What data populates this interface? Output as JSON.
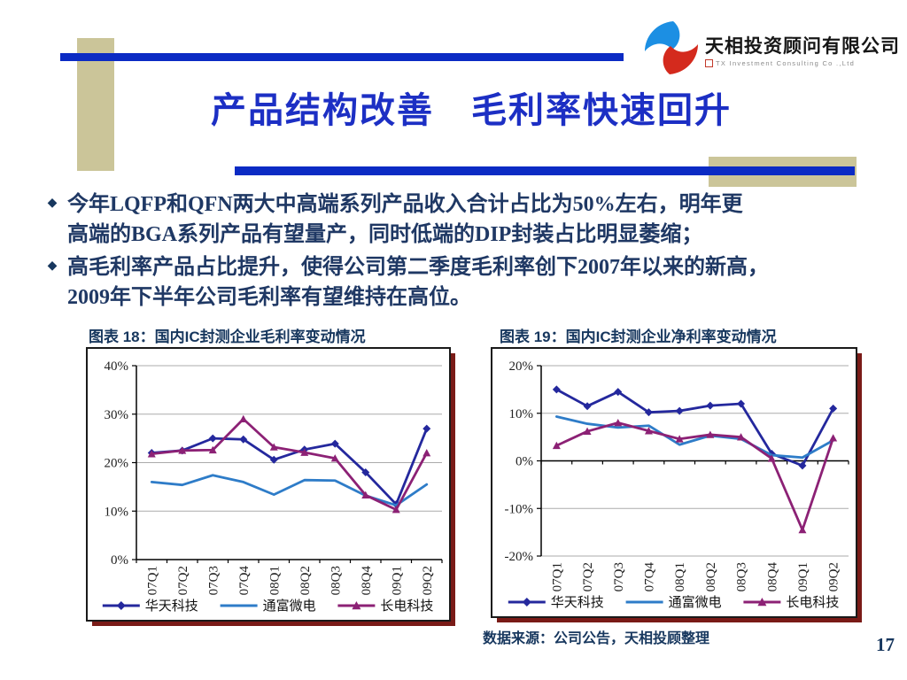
{
  "logo": {
    "company_cn": "天相投资顾问有限公司",
    "company_en": "TX Investment Consulting Co .,Ltd"
  },
  "header": {
    "title": "产品结构改善　毛利率快速回升"
  },
  "bullets": [
    {
      "marker": "◆",
      "line1": "今年LQFP和QFN两大中高端系列产品收入合计占比为50%左右，明年更",
      "line2": "高端的BGA系列产品有望量产，同时低端的DIP封装占比明显萎缩；"
    },
    {
      "marker": "◆",
      "line1": "高毛利率产品占比提升，使得公司第二季度毛利率创下2007年以来的新高，",
      "line2": "2009年下半年公司毛利率有望维持在高位。"
    }
  ],
  "source_note": "数据来源：公司公告，天相投顾整理",
  "page_number": "17",
  "colors": {
    "accent_blue_bar": "#0B2BC4",
    "title_blue": "#1C2FC4",
    "tan": "#CBC599",
    "body_navy": "#1F3864",
    "chart_frame_shadow": "#7A1B17",
    "gridline": "#ABABAB",
    "logo_blue": "#1C8FE3",
    "logo_red": "#D42A1D"
  },
  "chart_data": [
    {
      "type": "line",
      "title": "图表 18：国内IC封测企业毛利率变动情况",
      "categories": [
        "07Q1",
        "07Q2",
        "07Q3",
        "07Q4",
        "08Q1",
        "08Q2",
        "08Q3",
        "08Q4",
        "09Q1",
        "09Q2"
      ],
      "ylim": [
        0,
        40
      ],
      "grid": true,
      "legend_position": "bottom",
      "yticks": [
        {
          "value": 40,
          "label": "40%"
        },
        {
          "value": 30,
          "label": "30%"
        },
        {
          "value": 20,
          "label": "20%"
        },
        {
          "value": 10,
          "label": "10%"
        },
        {
          "value": 0,
          "label": "0%"
        }
      ],
      "series": [
        {
          "name": "华天科技",
          "color": "#24289D",
          "marker": "diamond",
          "values": [
            22.0,
            22.5,
            25.0,
            24.8,
            20.6,
            22.7,
            23.9,
            18.0,
            11.4,
            27.0
          ]
        },
        {
          "name": "通富微电",
          "color": "#2E7CC8",
          "marker": "none",
          "values": [
            16.0,
            15.4,
            17.4,
            16.0,
            13.4,
            16.4,
            16.3,
            13.2,
            11.2,
            15.5
          ]
        },
        {
          "name": "长电科技",
          "color": "#8C2175",
          "marker": "triangle",
          "values": [
            21.8,
            22.5,
            22.6,
            29.0,
            23.2,
            22.1,
            20.9,
            13.3,
            10.3,
            22.0
          ]
        }
      ]
    },
    {
      "type": "line",
      "title": "图表 19：国内IC封测企业净利率变动情况",
      "categories": [
        "07Q1",
        "07Q2",
        "07Q3",
        "07Q4",
        "08Q1",
        "08Q2",
        "08Q3",
        "08Q4",
        "09Q1",
        "09Q2"
      ],
      "ylim": [
        -20,
        20
      ],
      "grid": true,
      "legend_position": "bottom",
      "yticks": [
        {
          "value": 20,
          "label": "20%"
        },
        {
          "value": 10,
          "label": "10%"
        },
        {
          "value": 0,
          "label": "0%"
        },
        {
          "value": -10,
          "label": "-10%"
        },
        {
          "value": -20,
          "label": "-20%"
        }
      ],
      "series": [
        {
          "name": "华天科技",
          "color": "#24289D",
          "marker": "diamond",
          "values": [
            15.0,
            11.5,
            14.5,
            10.2,
            10.5,
            11.6,
            12.0,
            1.5,
            -1.0,
            11.0
          ]
        },
        {
          "name": "通富微电",
          "color": "#2E7CC8",
          "marker": "none",
          "values": [
            9.3,
            7.8,
            7.0,
            7.4,
            3.4,
            5.3,
            4.6,
            1.2,
            0.7,
            4.3
          ]
        },
        {
          "name": "长电科技",
          "color": "#8C2175",
          "marker": "triangle",
          "values": [
            3.2,
            6.2,
            8.0,
            6.3,
            4.6,
            5.5,
            5.0,
            0.5,
            -14.5,
            4.8
          ]
        }
      ]
    }
  ]
}
